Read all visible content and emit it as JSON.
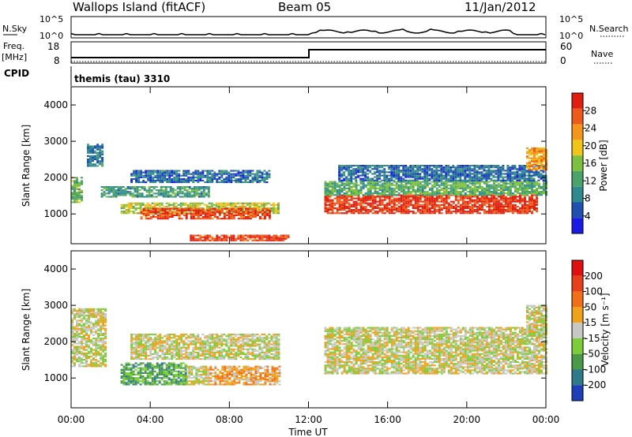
{
  "header": {
    "station": "Wallops Island (fitACF)",
    "beam": "Beam 05",
    "date": "11/Jan/2012",
    "cpid_label": "CPID",
    "cpid_text": "themis (tau) 3310"
  },
  "strip_sky": {
    "left_label": "N.Sky",
    "right_label": "N.Search",
    "left_ticks": [
      "10^5",
      "10^0"
    ],
    "right_ticks": [
      "10^5",
      "10^0"
    ]
  },
  "strip_freq": {
    "left_label": "Freq.",
    "left_unit": "[MHz]",
    "right_label": "Nave",
    "left_ticks": [
      "18",
      "8"
    ],
    "right_ticks": [
      "60",
      "0"
    ]
  },
  "chart_data": [
    {
      "type": "heatmap",
      "name": "power",
      "x_start_hours": 0,
      "x_end_hours": 24,
      "ylabel": "Slant Range [km]",
      "yticks": [
        1000,
        2000,
        3000,
        4000
      ],
      "ylim": [
        180,
        4500
      ],
      "colorbar_label": "Power [dB]",
      "colorbar_ticks": [
        "28",
        "24",
        "20",
        "16",
        "12",
        "8",
        "4"
      ],
      "colors": [
        "#1a1ae6",
        "#1f4fb0",
        "#2f8a8f",
        "#4aa36a",
        "#7dbf3e",
        "#f0c418",
        "#f5951c",
        "#ee5a1a",
        "#e01f10"
      ],
      "bands": [
        {
          "t0": 0.0,
          "t1": 0.6,
          "r0": 1300,
          "r1": 2000,
          "level": 0.45
        },
        {
          "t0": 0.8,
          "t1": 1.6,
          "r0": 2300,
          "r1": 2900,
          "level": 0.25
        },
        {
          "t0": 1.5,
          "t1": 7.0,
          "r0": 1450,
          "r1": 1750,
          "level": 0.35
        },
        {
          "t0": 2.5,
          "t1": 10.5,
          "r0": 1000,
          "r1": 1300,
          "level": 0.55
        },
        {
          "t0": 3.5,
          "t1": 10.0,
          "r0": 850,
          "r1": 1150,
          "level": 0.88
        },
        {
          "t0": 3.0,
          "t1": 10.0,
          "r0": 1850,
          "r1": 2200,
          "level": 0.22
        },
        {
          "t0": 6.0,
          "t1": 11.0,
          "r0": 250,
          "r1": 400,
          "level": 0.9
        },
        {
          "t0": 12.8,
          "t1": 23.6,
          "r0": 1000,
          "r1": 1500,
          "level": 0.92
        },
        {
          "t0": 12.8,
          "t1": 24.0,
          "r0": 1500,
          "r1": 1900,
          "level": 0.42
        },
        {
          "t0": 13.5,
          "t1": 24.0,
          "r0": 1900,
          "r1": 2350,
          "level": 0.22
        },
        {
          "t0": 23.0,
          "t1": 24.0,
          "r0": 2200,
          "r1": 2800,
          "level": 0.72
        }
      ]
    },
    {
      "type": "heatmap",
      "name": "velocity",
      "x_start_hours": 0,
      "x_end_hours": 24,
      "xlabel": "Time UT",
      "xticks": [
        "00:00",
        "04:00",
        "08:00",
        "12:00",
        "16:00",
        "20:00",
        "00:00"
      ],
      "ylabel": "Slant Range [km]",
      "yticks": [
        1000,
        2000,
        3000,
        4000
      ],
      "ylim": [
        180,
        4500
      ],
      "colorbar_label": "Velocity [m s⁻¹]",
      "colorbar_ticks": [
        "200",
        "100",
        "50",
        "15",
        "-15",
        "-50",
        "-100",
        "-200"
      ],
      "colors": [
        "#1f3fb8",
        "#2f7a8a",
        "#4a9a48",
        "#7ccd3a",
        "#c7c7c3",
        "#f0a21a",
        "#f06f18",
        "#e8401a",
        "#e01010"
      ],
      "bands": [
        {
          "t0": 0.0,
          "t1": 1.8,
          "r0": 1300,
          "r1": 2900,
          "level": 0.5
        },
        {
          "t0": 2.5,
          "t1": 5.8,
          "r0": 800,
          "r1": 1400,
          "level": 0.3
        },
        {
          "t0": 5.8,
          "t1": 7.0,
          "r0": 800,
          "r1": 1300,
          "level": 0.5
        },
        {
          "t0": 7.0,
          "t1": 10.5,
          "r0": 800,
          "r1": 1300,
          "level": 0.62
        },
        {
          "t0": 3.0,
          "t1": 10.5,
          "r0": 1500,
          "r1": 2200,
          "level": 0.5
        },
        {
          "t0": 12.8,
          "t1": 24.0,
          "r0": 1100,
          "r1": 2400,
          "level": 0.5
        },
        {
          "t0": 23.0,
          "t1": 24.0,
          "r0": 2200,
          "r1": 3000,
          "level": 0.5
        }
      ]
    }
  ]
}
